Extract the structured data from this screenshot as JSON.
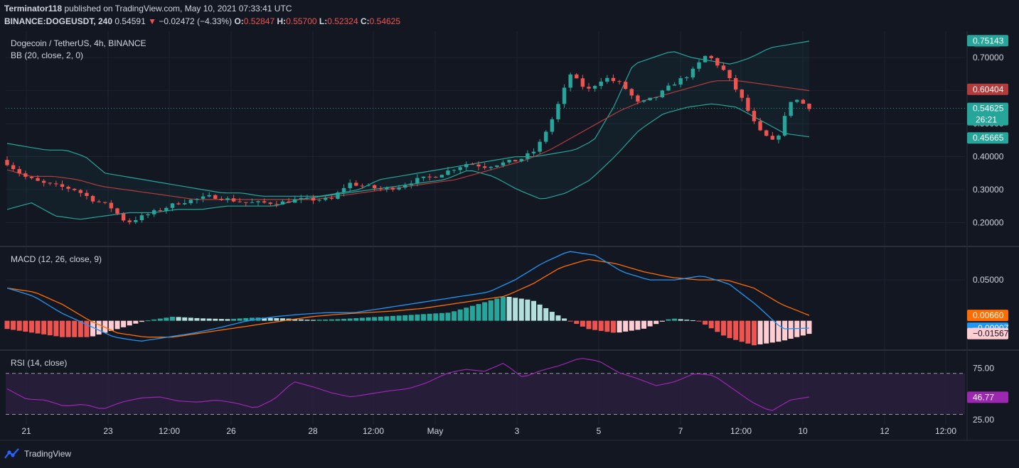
{
  "header": {
    "publisher": "Terminator118",
    "published_text": " published on TradingView.com, May 10, 2021 07:33:41 UTC",
    "symbol": "BINANCE:DOGEUSDT, 240",
    "last": "0.54591",
    "change_arrow": "▼",
    "change": "−0.02472 (−4.33%)",
    "o_label": "O:",
    "o": "0.52847",
    "h_label": "H:",
    "h": "0.55700",
    "l_label": "L:",
    "l": "0.52324",
    "c_label": "C:",
    "c": "0.54625"
  },
  "footer": {
    "brand": "TradingView"
  },
  "colors": {
    "bg": "#131722",
    "grid": "#1f2330",
    "text": "#d1d4dc",
    "up": "#26a69a",
    "down": "#ef5350",
    "bb_band": "#26a69a",
    "bb_basis": "#b23c3c",
    "macd": "#2196f3",
    "signal": "#ff6d00",
    "hist_up_strong": "#26a69a",
    "hist_up_weak": "#b2dfdb",
    "hist_down_strong": "#ef5350",
    "hist_down_weak": "#ffcdd2",
    "rsi": "#9c27b0",
    "rsi_band": "#2a1f3d"
  },
  "chart_data": [
    {
      "type": "candlestick",
      "legend": [
        "Dogecoin / TetherUS, 4h, BINANCE",
        "BB (20, close, 2, 0)"
      ],
      "price_axis_unit": "USDT",
      "ylim": [
        0.13,
        0.78
      ],
      "y_ticks": [
        0.2,
        0.3,
        0.4,
        0.5,
        0.6,
        0.7
      ],
      "y_tick_labels": [
        "0.20000",
        "0.30000",
        "0.40000",
        "0.50000",
        "0.60000",
        "0.70000"
      ],
      "x_tick_labels": [
        "21",
        "23",
        "12:00",
        "26",
        "28",
        "12:00",
        "May",
        "3",
        "5",
        "7",
        "12:00",
        "10",
        "12",
        "12:00"
      ],
      "close_path": [
        0.38,
        0.34,
        0.32,
        0.31,
        0.3,
        0.27,
        0.25,
        0.2,
        0.22,
        0.24,
        0.26,
        0.27,
        0.28,
        0.27,
        0.26,
        0.26,
        0.26,
        0.27,
        0.27,
        0.27,
        0.32,
        0.31,
        0.3,
        0.31,
        0.33,
        0.34,
        0.36,
        0.38,
        0.37,
        0.38,
        0.39,
        0.42,
        0.52,
        0.65,
        0.6,
        0.64,
        0.62,
        0.56,
        0.58,
        0.62,
        0.65,
        0.71,
        0.66,
        0.58,
        0.48,
        0.44,
        0.58,
        0.55
      ],
      "bb_upper_path": [
        0.44,
        0.43,
        0.42,
        0.42,
        0.4,
        0.35,
        0.34,
        0.33,
        0.32,
        0.31,
        0.3,
        0.29,
        0.29,
        0.28,
        0.28,
        0.28,
        0.28,
        0.29,
        0.3,
        0.33,
        0.34,
        0.35,
        0.36,
        0.37,
        0.38,
        0.39,
        0.4,
        0.4,
        0.41,
        0.42,
        0.45,
        0.55,
        0.68,
        0.7,
        0.72,
        0.7,
        0.69,
        0.68,
        0.7,
        0.73,
        0.74,
        0.75
      ],
      "bb_basis_path": [
        0.36,
        0.34,
        0.34,
        0.33,
        0.31,
        0.3,
        0.29,
        0.28,
        0.27,
        0.27,
        0.27,
        0.27,
        0.27,
        0.27,
        0.28,
        0.29,
        0.3,
        0.31,
        0.32,
        0.33,
        0.35,
        0.37,
        0.39,
        0.42,
        0.46,
        0.5,
        0.54,
        0.57,
        0.59,
        0.61,
        0.63,
        0.63,
        0.62,
        0.61,
        0.6
      ],
      "bb_lower_path": [
        0.24,
        0.26,
        0.22,
        0.21,
        0.22,
        0.23,
        0.23,
        0.24,
        0.24,
        0.25,
        0.25,
        0.25,
        0.27,
        0.28,
        0.29,
        0.3,
        0.31,
        0.32,
        0.33,
        0.36,
        0.34,
        0.3,
        0.27,
        0.29,
        0.33,
        0.4,
        0.48,
        0.53,
        0.55,
        0.56,
        0.55,
        0.51,
        0.47,
        0.46
      ],
      "price_labels": [
        {
          "value": 0.75143,
          "text": "0.75143",
          "color": "#26a69a"
        },
        {
          "value": 0.60404,
          "text": "0.60404",
          "color": "#b23c3c"
        },
        {
          "value": 0.54625,
          "text": "0.54625",
          "sub": "26:21",
          "color": "#26a69a"
        },
        {
          "value": 0.45665,
          "text": "0.45665",
          "color": "#26a69a"
        }
      ],
      "current_price": 0.54625
    },
    {
      "type": "line",
      "legend": "MACD (12, 26, close, 9)",
      "ylim": [
        -0.035,
        0.09
      ],
      "y_ticks": [
        0.05
      ],
      "y_tick_labels": [
        "0.05000"
      ],
      "macd_path": [
        0.04,
        0.03,
        0.01,
        -0.005,
        -0.02,
        -0.025,
        -0.02,
        -0.015,
        -0.008,
        0.0,
        0.005,
        0.008,
        0.01,
        0.01,
        0.015,
        0.02,
        0.025,
        0.03,
        0.035,
        0.05,
        0.07,
        0.085,
        0.08,
        0.06,
        0.05,
        0.05,
        0.055,
        0.045,
        0.02,
        -0.01,
        -0.009
      ],
      "signal_path": [
        0.04,
        0.035,
        0.02,
        0.0,
        -0.015,
        -0.02,
        -0.02,
        -0.015,
        -0.01,
        -0.005,
        0.0,
        0.005,
        0.008,
        0.01,
        0.012,
        0.015,
        0.02,
        0.025,
        0.03,
        0.045,
        0.065,
        0.075,
        0.07,
        0.06,
        0.053,
        0.05,
        0.05,
        0.04,
        0.02,
        0.0066
      ],
      "histogram_path": [
        -0.01,
        -0.015,
        -0.02,
        -0.02,
        -0.01,
        0.0,
        0.005,
        0.003,
        0.002,
        0.004,
        0.003,
        0.001,
        0.002,
        0.004,
        0.006,
        0.008,
        0.01,
        0.02,
        0.03,
        0.025,
        0.005,
        -0.01,
        -0.015,
        -0.01,
        0.003,
        0.0,
        -0.02,
        -0.03,
        -0.025,
        -0.016
      ],
      "value_labels": [
        {
          "value": 0.0066,
          "text": "0.00660",
          "color": "#ff6d00"
        },
        {
          "value": -0.00907,
          "text": "−0.00907",
          "color": "#2196f3"
        },
        {
          "value": -0.01567,
          "text": "−0.01567",
          "color": "#ffcdd2",
          "text_color": "#131722"
        }
      ]
    },
    {
      "type": "line",
      "legend": "RSI (14, close)",
      "ylim": [
        20,
        92
      ],
      "bands": [
        70,
        30
      ],
      "y_ticks": [
        75,
        25
      ],
      "y_tick_labels": [
        "75.00",
        "25.00"
      ],
      "rsi_path": [
        55,
        45,
        44,
        38,
        40,
        35,
        42,
        46,
        47,
        43,
        42,
        44,
        41,
        36,
        45,
        62,
        57,
        51,
        47,
        50,
        53,
        55,
        61,
        70,
        74,
        72,
        80,
        66,
        73,
        78,
        85,
        82,
        71,
        65,
        58,
        62,
        70,
        68,
        55,
        42,
        33,
        44,
        47
      ],
      "value_labels": [
        {
          "value": 46.77,
          "text": "46.77",
          "color": "#9c27b0"
        }
      ]
    }
  ]
}
